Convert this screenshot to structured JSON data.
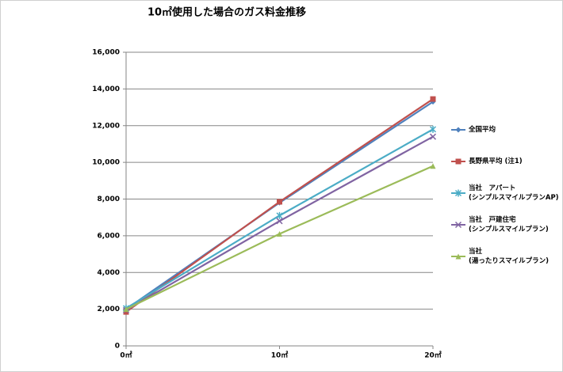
{
  "chart_data": {
    "type": "line",
    "title": "10㎡使用した場合のガス料金推移",
    "categories": [
      "0㎡",
      "10㎡",
      "20㎡"
    ],
    "ylim": [
      0,
      16000
    ],
    "yticks": [
      0,
      {
        "value": 2000,
        "label": "2,000"
      },
      {
        "value": 4000,
        "label": "4,000"
      },
      {
        "value": 6000,
        "label": "6,000"
      },
      {
        "value": 8000,
        "label": "8,000"
      },
      {
        "value": 10000,
        "label": "10,000"
      },
      {
        "value": 12000,
        "label": "12,000"
      },
      {
        "value": 14000,
        "label": "14,000"
      },
      {
        "value": 16000,
        "label": "16,000"
      }
    ],
    "grid": true,
    "legend": "right",
    "series": [
      {
        "name": "全国平均",
        "color": "#4f81bd",
        "marker": "diamond",
        "values": [
          2000,
          7800,
          13300
        ]
      },
      {
        "name": "長野県平均 (注1)",
        "color": "#c0504d",
        "marker": "square",
        "values": [
          1850,
          7850,
          13450
        ]
      },
      {
        "name": "当社　アパート\n(シンプルスマイルプランAP)",
        "color": "#4bacc6",
        "marker": "star",
        "values": [
          2050,
          7100,
          11800
        ]
      },
      {
        "name": "当社　戸建住宅\n(シンプルスマイルプラン)",
        "color": "#8064a2",
        "marker": "x",
        "values": [
          1950,
          6800,
          11400
        ]
      },
      {
        "name": "当社\n(湯ったりスマイルプラン)",
        "color": "#9bbb59",
        "marker": "triangle",
        "values": [
          2000,
          6100,
          9800
        ]
      }
    ]
  }
}
